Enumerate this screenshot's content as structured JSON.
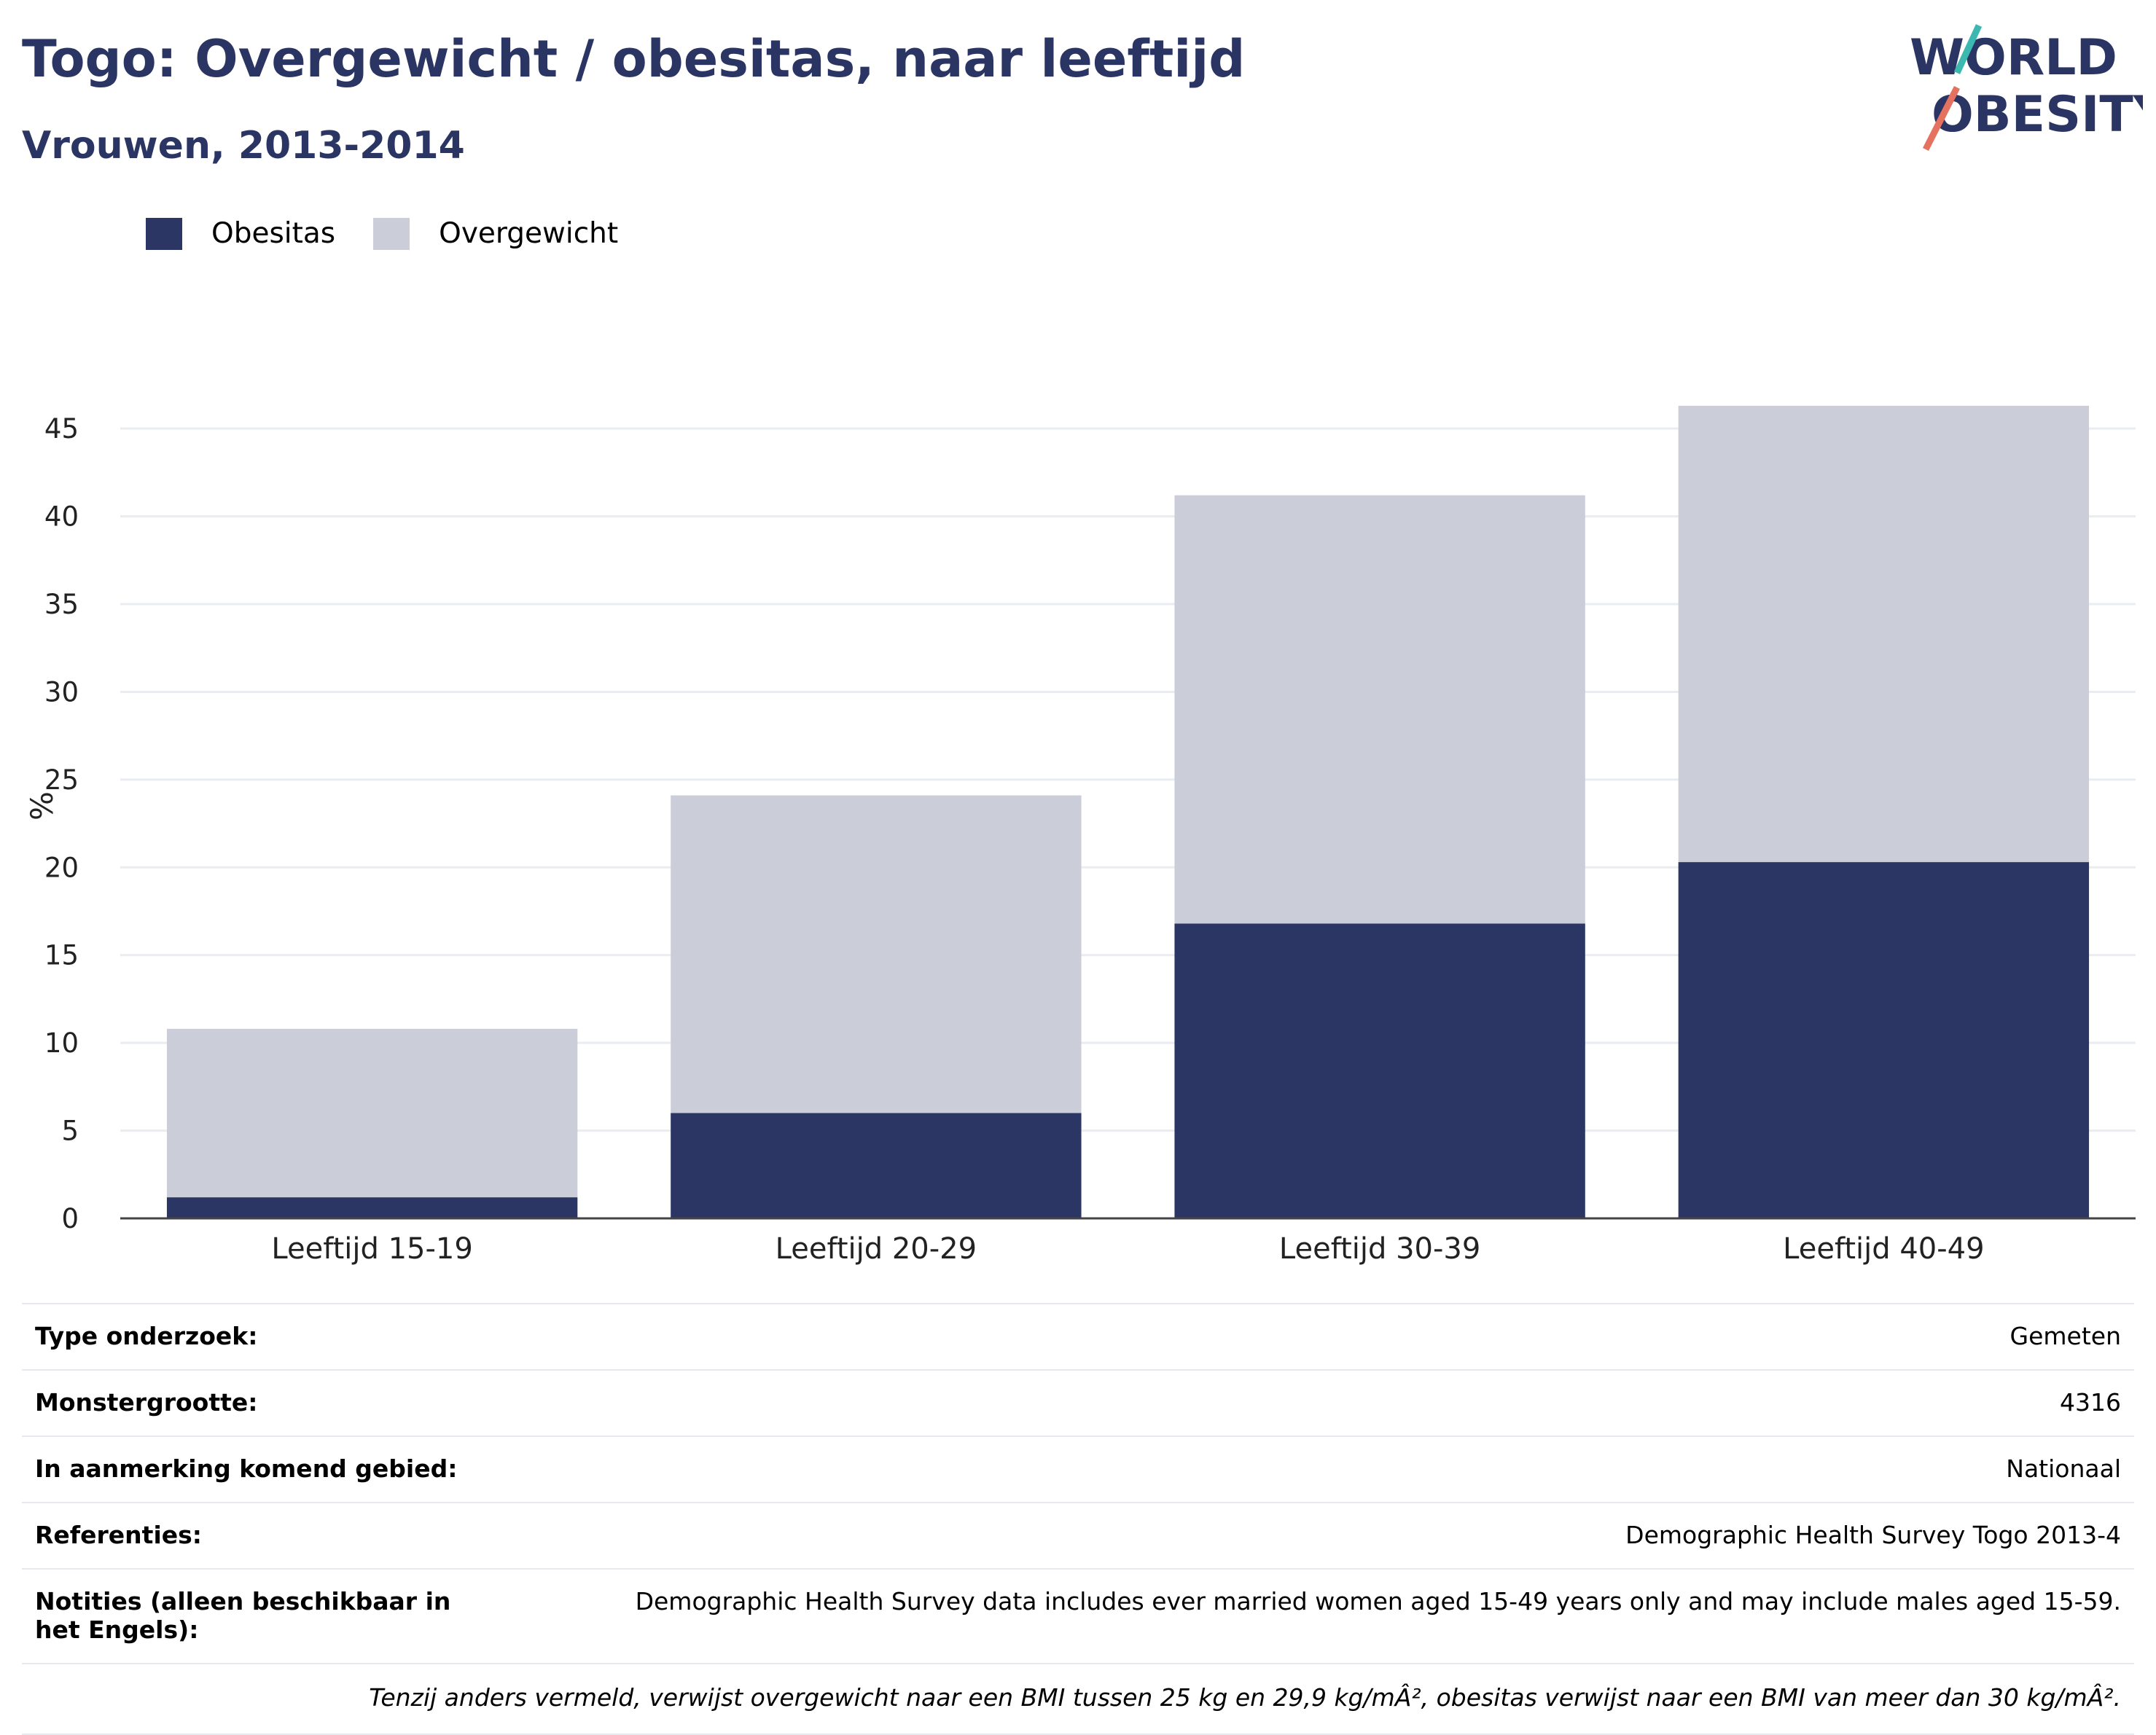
{
  "header": {
    "title": "Togo: Overgewicht / obesitas, naar leeftijd",
    "subtitle": "Vrouwen, 2013-2014",
    "logo_text_1": "WORLD",
    "logo_text_2": "OBESITY"
  },
  "legend": {
    "items": [
      {
        "label": "Obesitas",
        "color": "#2b3664"
      },
      {
        "label": "Overgewicht",
        "color": "#cbcdd8"
      }
    ]
  },
  "chart_data": {
    "type": "bar",
    "stacked": true,
    "categories": [
      "Leeftijd 15-19",
      "Leeftijd 20-29",
      "Leeftijd 30-39",
      "Leeftijd 40-49"
    ],
    "series": [
      {
        "name": "Obesitas",
        "values": [
          1.2,
          6.0,
          16.8,
          20.3
        ],
        "color": "#2b3664"
      },
      {
        "name": "Overgewicht",
        "values": [
          9.6,
          18.1,
          24.4,
          26.0
        ],
        "color": "#cbcdd8"
      }
    ],
    "ylabel": "%",
    "ylim": [
      0,
      47
    ],
    "yticks": [
      0,
      5,
      10,
      15,
      20,
      25,
      30,
      35,
      40,
      45
    ],
    "grid": true,
    "legend_position": "top-left"
  },
  "info": {
    "rows": [
      {
        "key": "Type onderzoek:",
        "value": "Gemeten"
      },
      {
        "key": "Monstergrootte:",
        "value": "4316"
      },
      {
        "key": "In aanmerking komend gebied:",
        "value": "Nationaal"
      },
      {
        "key": "Referenties:",
        "value": "Demographic Health Survey Togo 2013-4"
      },
      {
        "key": "Notities (alleen beschikbaar in het Engels):",
        "value": "Demographic Health Survey data includes ever married women aged 15-49 years only and may include males aged 15-59."
      }
    ],
    "footnote": "Tenzij anders vermeld, verwijst overgewicht naar een BMI tussen 25 kg en 29,9 kg/mÂ², obesitas verwijst naar een BMI van meer dan 30 kg/mÂ²."
  }
}
